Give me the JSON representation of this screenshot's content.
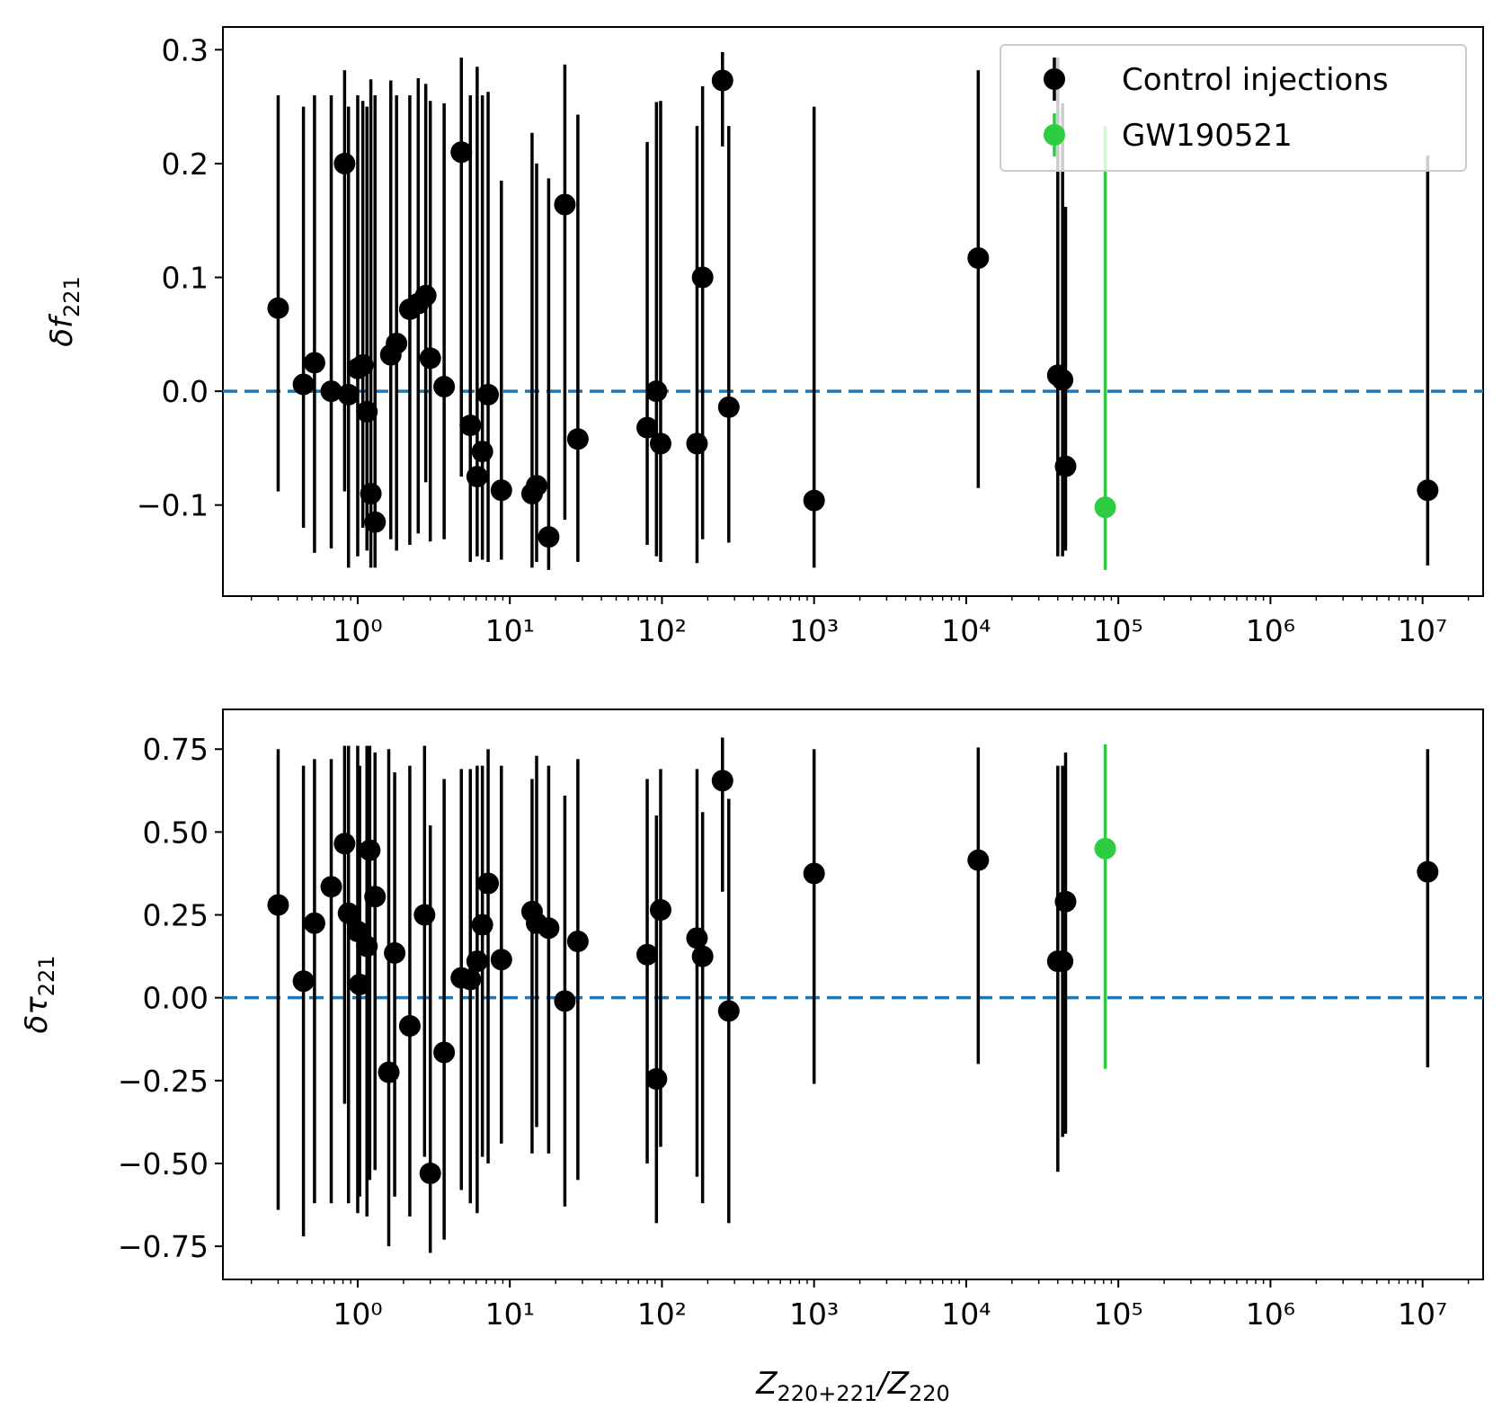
{
  "chart_data": [
    {
      "type": "scatter",
      "xscale": "log",
      "xlim": [
        0.13,
        25000000
      ],
      "ylim": [
        -0.18,
        0.32
      ],
      "ylabel": "δf",
      "ylabel_sub": "221",
      "yticks": [
        -0.1,
        0.0,
        0.1,
        0.2,
        0.3
      ],
      "ytick_labels": [
        "−0.1",
        "0.0",
        "0.1",
        "0.2",
        "0.3"
      ],
      "reference_line": {
        "y": 0.0,
        "style": "dashed",
        "color": "#1f77b4"
      },
      "legend": {
        "location": "upper right",
        "entries": [
          "Control injections",
          "GW190521"
        ]
      },
      "series": [
        {
          "name": "Control injections",
          "color": "#000000",
          "points": [
            {
              "x": 0.3,
              "y": 0.073,
              "lo": -0.088,
              "hi": 0.26
            },
            {
              "x": 0.44,
              "y": 0.006,
              "lo": -0.12,
              "hi": 0.25
            },
            {
              "x": 0.52,
              "y": 0.025,
              "lo": -0.142,
              "hi": 0.26
            },
            {
              "x": 0.67,
              "y": 0.0,
              "lo": -0.138,
              "hi": 0.26
            },
            {
              "x": 0.82,
              "y": 0.2,
              "lo": -0.088,
              "hi": 0.282
            },
            {
              "x": 0.87,
              "y": -0.003,
              "lo": -0.155,
              "hi": 0.25
            },
            {
              "x": 1.0,
              "y": 0.02,
              "lo": -0.145,
              "hi": 0.26
            },
            {
              "x": 1.08,
              "y": 0.023,
              "lo": -0.12,
              "hi": 0.255
            },
            {
              "x": 1.15,
              "y": -0.018,
              "lo": -0.14,
              "hi": 0.25
            },
            {
              "x": 1.22,
              "y": -0.09,
              "lo": -0.155,
              "hi": 0.274
            },
            {
              "x": 1.3,
              "y": -0.115,
              "lo": -0.155,
              "hi": 0.26
            },
            {
              "x": 1.65,
              "y": 0.032,
              "lo": -0.13,
              "hi": 0.273
            },
            {
              "x": 1.8,
              "y": 0.042,
              "lo": -0.14,
              "hi": 0.26
            },
            {
              "x": 2.2,
              "y": 0.072,
              "lo": -0.135,
              "hi": 0.26
            },
            {
              "x": 2.5,
              "y": 0.077,
              "lo": -0.125,
              "hi": 0.275
            },
            {
              "x": 2.8,
              "y": 0.084,
              "lo": -0.08,
              "hi": 0.27
            },
            {
              "x": 3.0,
              "y": 0.029,
              "lo": -0.132,
              "hi": 0.255
            },
            {
              "x": 3.7,
              "y": 0.004,
              "lo": -0.13,
              "hi": 0.253
            },
            {
              "x": 4.8,
              "y": 0.21,
              "lo": -0.075,
              "hi": 0.293
            },
            {
              "x": 5.5,
              "y": -0.03,
              "lo": -0.15,
              "hi": 0.26
            },
            {
              "x": 6.1,
              "y": -0.075,
              "lo": -0.145,
              "hi": 0.285
            },
            {
              "x": 6.6,
              "y": -0.053,
              "lo": -0.148,
              "hi": 0.26
            },
            {
              "x": 7.2,
              "y": -0.003,
              "lo": -0.15,
              "hi": 0.263
            },
            {
              "x": 8.8,
              "y": -0.087,
              "lo": -0.148,
              "hi": 0.185
            },
            {
              "x": 14.0,
              "y": -0.09,
              "lo": -0.155,
              "hi": 0.227
            },
            {
              "x": 15.0,
              "y": -0.083,
              "lo": -0.15,
              "hi": 0.2
            },
            {
              "x": 18.0,
              "y": -0.128,
              "lo": -0.157,
              "hi": 0.187
            },
            {
              "x": 23.0,
              "y": 0.164,
              "lo": -0.113,
              "hi": 0.287
            },
            {
              "x": 28.0,
              "y": -0.042,
              "lo": -0.15,
              "hi": 0.243
            },
            {
              "x": 80.0,
              "y": -0.032,
              "lo": -0.135,
              "hi": 0.219
            },
            {
              "x": 92.0,
              "y": 0.0,
              "lo": -0.145,
              "hi": 0.254
            },
            {
              "x": 98.0,
              "y": -0.046,
              "lo": -0.15,
              "hi": 0.255
            },
            {
              "x": 170.0,
              "y": -0.046,
              "lo": -0.151,
              "hi": 0.233
            },
            {
              "x": 185.0,
              "y": 0.1,
              "lo": -0.13,
              "hi": 0.268
            },
            {
              "x": 250.0,
              "y": 0.273,
              "lo": 0.215,
              "hi": 0.298
            },
            {
              "x": 275.0,
              "y": -0.014,
              "lo": -0.133,
              "hi": 0.233
            },
            {
              "x": 1000.0,
              "y": -0.096,
              "lo": -0.155,
              "hi": 0.25
            },
            {
              "x": 12000.0,
              "y": 0.117,
              "lo": -0.085,
              "hi": 0.282
            },
            {
              "x": 40000.0,
              "y": 0.014,
              "lo": -0.145,
              "hi": 0.293
            },
            {
              "x": 43000.0,
              "y": 0.01,
              "lo": -0.145,
              "hi": 0.253
            },
            {
              "x": 45000.0,
              "y": -0.066,
              "lo": -0.14,
              "hi": 0.162
            },
            {
              "x": 10800000.0,
              "y": -0.087,
              "lo": -0.153,
              "hi": 0.207
            }
          ]
        },
        {
          "name": "GW190521",
          "color": "#2ecc40",
          "points": [
            {
              "x": 82000.0,
              "y": -0.102,
              "lo": -0.157,
              "hi": 0.233
            }
          ]
        }
      ]
    },
    {
      "type": "scatter",
      "xscale": "log",
      "xlim": [
        0.13,
        25000000
      ],
      "ylim": [
        -0.85,
        0.87
      ],
      "ylabel": "δτ",
      "ylabel_sub": "221",
      "xlabel_parts": [
        "Z",
        "220+221",
        "/Z",
        "220"
      ],
      "yticks": [
        -0.75,
        -0.5,
        -0.25,
        0.0,
        0.25,
        0.5,
        0.75
      ],
      "ytick_labels": [
        "−0.75",
        "−0.50",
        "−0.25",
        "0.00",
        "0.25",
        "0.50",
        "0.75"
      ],
      "reference_line": {
        "y": 0.0,
        "style": "dashed",
        "color": "#1f77b4"
      },
      "series": [
        {
          "name": "Control injections",
          "color": "#000000",
          "points": [
            {
              "x": 0.3,
              "y": 0.28,
              "lo": -0.64,
              "hi": 0.75
            },
            {
              "x": 0.44,
              "y": 0.05,
              "lo": -0.72,
              "hi": 0.7
            },
            {
              "x": 0.52,
              "y": 0.225,
              "lo": -0.62,
              "hi": 0.72
            },
            {
              "x": 0.67,
              "y": 0.335,
              "lo": -0.62,
              "hi": 0.72
            },
            {
              "x": 0.82,
              "y": 0.465,
              "lo": -0.32,
              "hi": 0.76
            },
            {
              "x": 0.87,
              "y": 0.255,
              "lo": -0.62,
              "hi": 0.76
            },
            {
              "x": 1.0,
              "y": 0.2,
              "lo": -0.65,
              "hi": 0.76
            },
            {
              "x": 1.03,
              "y": 0.04,
              "lo": -0.6,
              "hi": 0.7
            },
            {
              "x": 1.15,
              "y": 0.155,
              "lo": -0.66,
              "hi": 0.76
            },
            {
              "x": 1.2,
              "y": 0.445,
              "lo": -0.55,
              "hi": 0.76
            },
            {
              "x": 1.3,
              "y": 0.305,
              "lo": -0.52,
              "hi": 0.74
            },
            {
              "x": 1.6,
              "y": -0.225,
              "lo": -0.75,
              "hi": 0.75
            },
            {
              "x": 1.75,
              "y": 0.135,
              "lo": -0.6,
              "hi": 0.68
            },
            {
              "x": 2.2,
              "y": -0.085,
              "lo": -0.66,
              "hi": 0.7
            },
            {
              "x": 2.75,
              "y": 0.25,
              "lo": -0.48,
              "hi": 0.76
            },
            {
              "x": 3.0,
              "y": -0.53,
              "lo": -0.77,
              "hi": 0.52
            },
            {
              "x": 3.7,
              "y": -0.165,
              "lo": -0.73,
              "hi": 0.66
            },
            {
              "x": 4.8,
              "y": 0.06,
              "lo": -0.58,
              "hi": 0.69
            },
            {
              "x": 5.5,
              "y": 0.055,
              "lo": -0.62,
              "hi": 0.69
            },
            {
              "x": 6.1,
              "y": 0.11,
              "lo": -0.65,
              "hi": 0.7
            },
            {
              "x": 6.6,
              "y": 0.22,
              "lo": -0.48,
              "hi": 0.7
            },
            {
              "x": 7.2,
              "y": 0.345,
              "lo": -0.5,
              "hi": 0.75
            },
            {
              "x": 8.8,
              "y": 0.115,
              "lo": -0.44,
              "hi": 0.7
            },
            {
              "x": 14.0,
              "y": 0.26,
              "lo": -0.47,
              "hi": 0.66
            },
            {
              "x": 15.0,
              "y": 0.225,
              "lo": -0.39,
              "hi": 0.73
            },
            {
              "x": 18.0,
              "y": 0.21,
              "lo": -0.47,
              "hi": 0.7
            },
            {
              "x": 23.0,
              "y": -0.01,
              "lo": -0.63,
              "hi": 0.61
            },
            {
              "x": 28.0,
              "y": 0.17,
              "lo": -0.55,
              "hi": 0.72
            },
            {
              "x": 80.0,
              "y": 0.13,
              "lo": -0.5,
              "hi": 0.66
            },
            {
              "x": 92.0,
              "y": -0.245,
              "lo": -0.68,
              "hi": 0.55
            },
            {
              "x": 98.0,
              "y": 0.265,
              "lo": -0.45,
              "hi": 0.69
            },
            {
              "x": 170.0,
              "y": 0.18,
              "lo": -0.54,
              "hi": 0.69
            },
            {
              "x": 185.0,
              "y": 0.125,
              "lo": -0.62,
              "hi": 0.56
            },
            {
              "x": 250.0,
              "y": 0.655,
              "lo": 0.32,
              "hi": 0.785
            },
            {
              "x": 275.0,
              "y": -0.04,
              "lo": -0.68,
              "hi": 0.6
            },
            {
              "x": 1000.0,
              "y": 0.375,
              "lo": -0.26,
              "hi": 0.75
            },
            {
              "x": 12000.0,
              "y": 0.415,
              "lo": -0.2,
              "hi": 0.755
            },
            {
              "x": 40000.0,
              "y": 0.11,
              "lo": -0.525,
              "hi": 0.7
            },
            {
              "x": 43000.0,
              "y": 0.11,
              "lo": -0.42,
              "hi": 0.7
            },
            {
              "x": 45000.0,
              "y": 0.29,
              "lo": -0.41,
              "hi": 0.74
            },
            {
              "x": 10800000.0,
              "y": 0.38,
              "lo": -0.21,
              "hi": 0.75
            }
          ]
        },
        {
          "name": "GW190521",
          "color": "#2ecc40",
          "points": [
            {
              "x": 82000.0,
              "y": 0.45,
              "lo": -0.215,
              "hi": 0.765
            }
          ]
        }
      ]
    }
  ]
}
